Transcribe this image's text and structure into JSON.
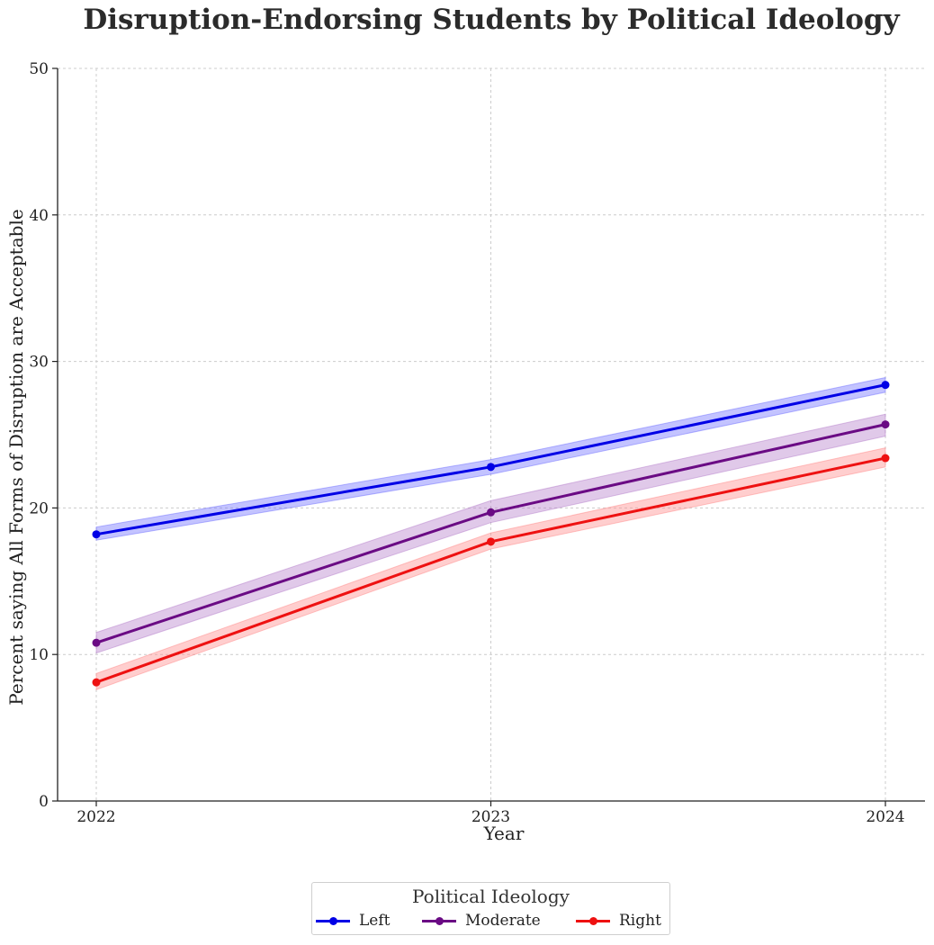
{
  "chart_data": {
    "type": "line",
    "title": "Disruption-Endorsing Students by Political Ideology",
    "xlabel": "Year",
    "ylabel": "Percent saying All Forms of Disruption are Acceptable",
    "x": [
      "2022",
      "2023",
      "2024"
    ],
    "ylim": [
      0,
      50
    ],
    "yticks": [
      0,
      10,
      20,
      30,
      40,
      50
    ],
    "grid": true,
    "legend": {
      "title": "Political Ideology",
      "placement": "bottom-center"
    },
    "series": [
      {
        "name": "Left",
        "color": "#0000e6",
        "band_color": "#6f6fff",
        "values": [
          18.2,
          22.8,
          28.4
        ],
        "lower": [
          17.8,
          22.3,
          27.9
        ],
        "upper": [
          18.7,
          23.3,
          28.9
        ]
      },
      {
        "name": "Moderate",
        "color": "#6a0a84",
        "band_color": "#b57fcb",
        "values": [
          10.8,
          19.7,
          25.7
        ],
        "lower": [
          10.1,
          19.0,
          24.9
        ],
        "upper": [
          11.5,
          20.5,
          26.4
        ]
      },
      {
        "name": "Right",
        "color": "#ee1111",
        "band_color": "#ff8a8a",
        "values": [
          8.1,
          17.7,
          23.4
        ],
        "lower": [
          7.6,
          17.2,
          22.8
        ],
        "upper": [
          8.7,
          18.3,
          24.1
        ]
      }
    ]
  }
}
